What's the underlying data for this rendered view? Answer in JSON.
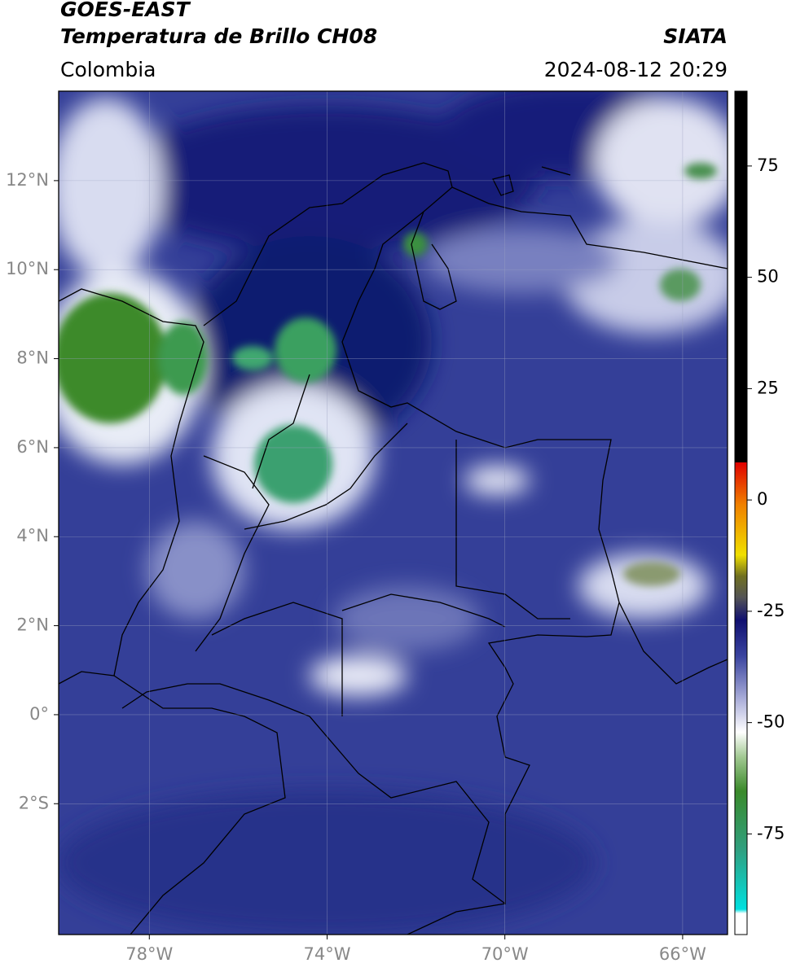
{
  "header": {
    "satellite": "GOES-EAST",
    "title": "Temperatura de Brillo CH08",
    "source": "SIATA",
    "region": "Colombia",
    "datetime": "2024-08-12 20:29"
  },
  "map": {
    "xlim": [
      -80.04,
      -64.99
    ],
    "ylim": [
      -4.94,
      14.01
    ],
    "xticks": [
      {
        "value": -78,
        "label": "78°W"
      },
      {
        "value": -74,
        "label": "74°W"
      },
      {
        "value": -70,
        "label": "70°W"
      },
      {
        "value": -66,
        "label": "66°W"
      }
    ],
    "yticks": [
      {
        "value": 12,
        "label": "12°N"
      },
      {
        "value": 10,
        "label": "10°N"
      },
      {
        "value": 8,
        "label": "8°N"
      },
      {
        "value": 6,
        "label": "6°N"
      },
      {
        "value": 4,
        "label": "4°N"
      },
      {
        "value": 2,
        "label": "2°N"
      },
      {
        "value": 0,
        "label": "0°"
      },
      {
        "value": -2,
        "label": "2°S"
      }
    ]
  },
  "colorbar": {
    "lim": [
      -97.6,
      91.8
    ],
    "ticks": [
      75,
      50,
      25,
      0,
      -25,
      -50,
      -75
    ]
  }
}
